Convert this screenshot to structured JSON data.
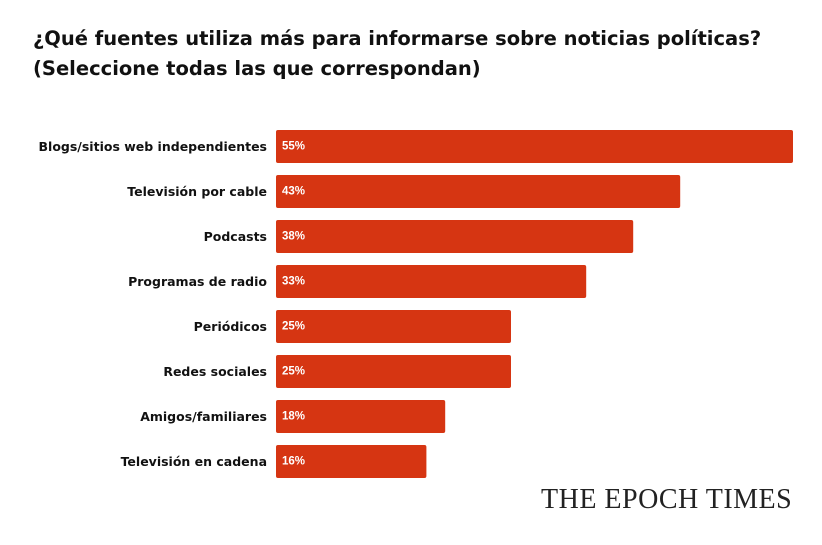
{
  "title": {
    "line1": "¿Qué fuentes utiliza más para informarse sobre noticias políticas?",
    "line2": "(Seleccione todas las que correspondan)"
  },
  "logo": "THE EPOCH TIMES",
  "colors": {
    "bar": "#d63512",
    "background": "#ffffff",
    "text": "#111111"
  },
  "chart_data": {
    "type": "bar",
    "orientation": "horizontal",
    "categories": [
      "Blogs/sitios web independientes",
      "Televisión por cable",
      "Podcasts",
      "Programas de radio",
      "Periódicos",
      "Redes sociales",
      "Amigos/familiares",
      "Televisión en cadena"
    ],
    "values": [
      55,
      43,
      38,
      33,
      25,
      25,
      18,
      16
    ],
    "value_labels": [
      "55%",
      "43%",
      "38%",
      "33%",
      "25%",
      "25%",
      "18%",
      "16%"
    ],
    "title": "¿Qué fuentes utiliza más para informarse sobre noticias políticas? (Seleccione todas las que correspondan)",
    "xlabel": "",
    "ylabel": "",
    "xlim": [
      0,
      55
    ],
    "grid": false,
    "legend": "none"
  }
}
